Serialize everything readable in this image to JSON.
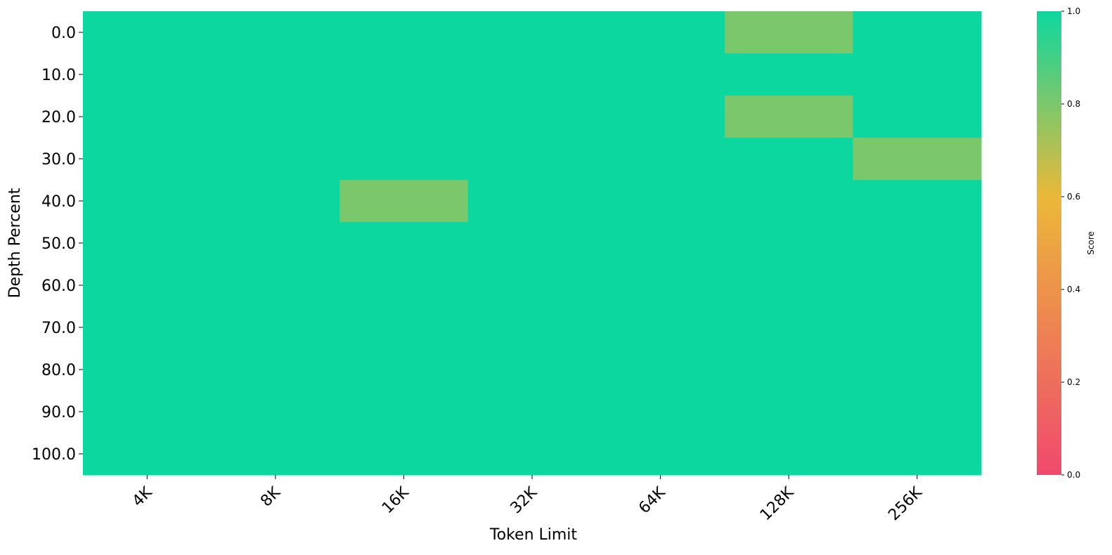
{
  "chart_data": {
    "type": "heatmap",
    "title": "",
    "xlabel": "Token Limit",
    "ylabel": "Depth Percent",
    "x_categories": [
      "4K",
      "8K",
      "16K",
      "32K",
      "64K",
      "128K",
      "256K"
    ],
    "y_categories": [
      "0.0",
      "10.0",
      "20.0",
      "30.0",
      "40.0",
      "50.0",
      "60.0",
      "70.0",
      "80.0",
      "90.0",
      "100.0"
    ],
    "values": [
      [
        1.0,
        1.0,
        1.0,
        1.0,
        1.0,
        0.8,
        1.0
      ],
      [
        1.0,
        1.0,
        1.0,
        1.0,
        1.0,
        1.0,
        1.0
      ],
      [
        1.0,
        1.0,
        1.0,
        1.0,
        1.0,
        0.8,
        1.0
      ],
      [
        1.0,
        1.0,
        1.0,
        1.0,
        1.0,
        1.0,
        0.8
      ],
      [
        1.0,
        1.0,
        0.8,
        1.0,
        1.0,
        1.0,
        1.0
      ],
      [
        1.0,
        1.0,
        1.0,
        1.0,
        1.0,
        1.0,
        1.0
      ],
      [
        1.0,
        1.0,
        1.0,
        1.0,
        1.0,
        1.0,
        1.0
      ],
      [
        1.0,
        1.0,
        1.0,
        1.0,
        1.0,
        1.0,
        1.0
      ],
      [
        1.0,
        1.0,
        1.0,
        1.0,
        1.0,
        1.0,
        1.0
      ],
      [
        1.0,
        1.0,
        1.0,
        1.0,
        1.0,
        1.0,
        1.0
      ],
      [
        1.0,
        1.0,
        1.0,
        1.0,
        1.0,
        1.0,
        1.0
      ]
    ],
    "colorbar": {
      "label": "Score",
      "range": [
        0.0,
        1.0
      ],
      "ticks": [
        "0.0",
        "0.2",
        "0.4",
        "0.6",
        "0.8",
        "1.0"
      ],
      "colors": [
        "#F0496E",
        "#EBB839",
        "#0CD79F"
      ]
    }
  }
}
